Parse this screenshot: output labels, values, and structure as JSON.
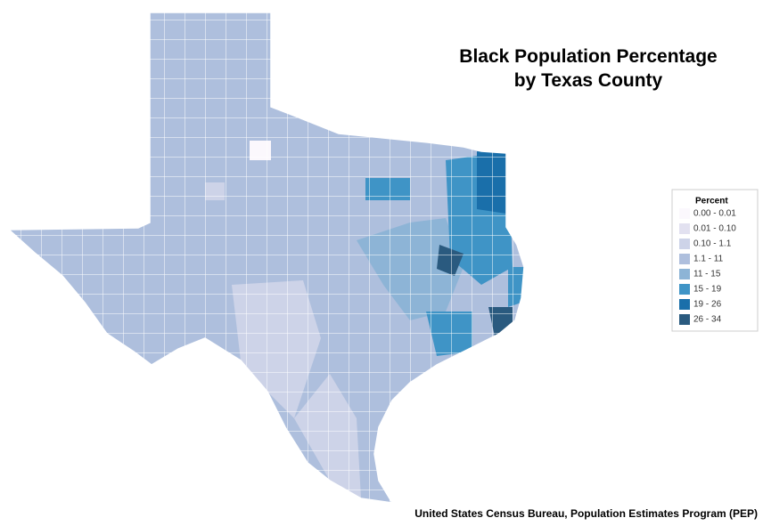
{
  "title_lines": [
    "Black Population Percentage",
    "by Texas County"
  ],
  "legend": {
    "title": "Percent",
    "items": [
      {
        "label": "0.00 - 0.01",
        "color": "#fbf8fd"
      },
      {
        "label": "0.01 - 0.10",
        "color": "#e2e1f0"
      },
      {
        "label": "0.10 - 1.1",
        "color": "#cdd3e8"
      },
      {
        "label": "1.1 - 11",
        "color": "#aebfdd"
      },
      {
        "label": "11 - 15",
        "color": "#8db4d6"
      },
      {
        "label": "15 - 19",
        "color": "#3f94c6"
      },
      {
        "label": "19 - 26",
        "color": "#1a6faa"
      },
      {
        "label": "26 - 34",
        "color": "#2a5a7f"
      }
    ]
  },
  "source": "United States Census Bureau, Population Estimates Program (PEP)"
}
